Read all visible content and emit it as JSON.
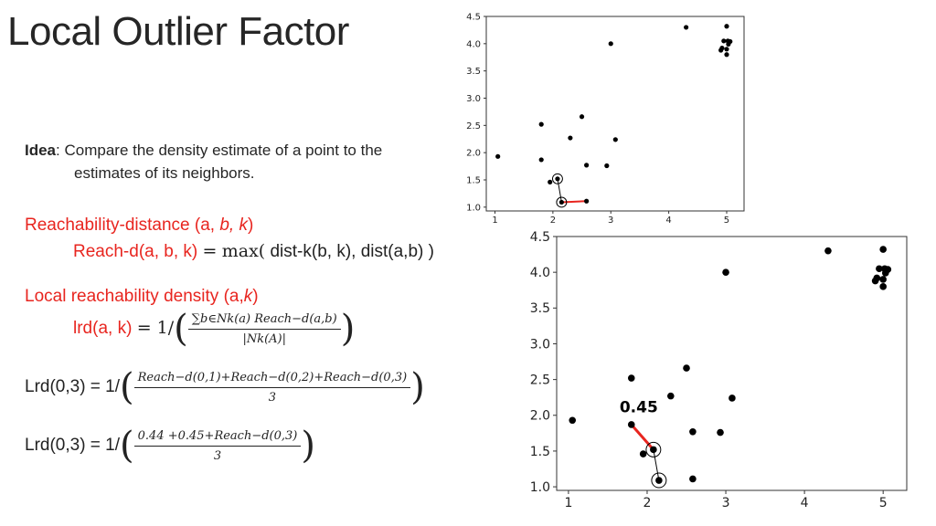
{
  "title": "Local Outlier Factor",
  "idea": {
    "label": "Idea",
    "line1": "Compare the density estimate of a point to the",
    "line2": "estimates of its neighbors."
  },
  "reach": {
    "heading_pre": "Reachability-distance (a,",
    "heading_b": "b,",
    "heading_k": "k",
    "heading_close": ")",
    "def_lhs": "Reach-d(a, b, k)",
    "def_eq": "=",
    "def_max": "max(",
    "def_rhs": "dist-k(b, k), dist(a,b) )"
  },
  "lrd": {
    "heading_pre": "Local reachability density (a,",
    "heading_k": "k",
    "heading_close": ")",
    "lhs": "lrd(a, k)",
    "eq": "= 1/",
    "num": "∑b∈Nk(a) Reach−d(a,b)",
    "den": "|Nk(A)|"
  },
  "ex1": {
    "lhs": "Lrd(0,3) = 1/",
    "num": "Reach−d(0,1)+Reach−d(0,2)+Reach−d(0,3)",
    "den": "3"
  },
  "ex2": {
    "lhs": "Lrd(0,3) = 1/",
    "num": "0.44 +0.45+Reach−d(0,3)",
    "den": "3"
  },
  "chart_data": [
    {
      "type": "scatter",
      "xlim": [
        0.85,
        5.3
      ],
      "ylim": [
        0.93,
        4.5
      ],
      "xticks": [
        "1",
        "2",
        "3",
        "4",
        "5"
      ],
      "yticks": [
        "1.0",
        "1.5",
        "2.0",
        "2.5",
        "3.0",
        "3.5",
        "4.0",
        "4.5"
      ],
      "points": [
        [
          1.05,
          1.93
        ],
        [
          1.8,
          2.52
        ],
        [
          1.8,
          1.87
        ],
        [
          1.95,
          1.46
        ],
        [
          2.08,
          1.52
        ],
        [
          2.15,
          1.09
        ],
        [
          2.3,
          2.27
        ],
        [
          2.5,
          2.66
        ],
        [
          2.58,
          1.77
        ],
        [
          2.58,
          1.11
        ],
        [
          2.93,
          1.76
        ],
        [
          3.08,
          2.24
        ],
        [
          3.0,
          4.0
        ],
        [
          4.3,
          4.3
        ],
        [
          4.92,
          3.92
        ],
        [
          4.95,
          4.05
        ],
        [
          5.0,
          3.8
        ],
        [
          5.0,
          3.9
        ],
        [
          5.0,
          4.32
        ],
        [
          5.02,
          4.05
        ],
        [
          5.06,
          4.04
        ],
        [
          4.9,
          3.88
        ],
        [
          5.03,
          3.99
        ]
      ],
      "highlight_points": [
        [
          2.08,
          1.52
        ],
        [
          2.15,
          1.09
        ]
      ],
      "black_edge": [
        [
          2.08,
          1.52
        ],
        [
          2.15,
          1.09
        ]
      ],
      "red_edge": [
        [
          2.15,
          1.09
        ],
        [
          2.58,
          1.11
        ]
      ],
      "grid": false
    },
    {
      "type": "scatter",
      "xlim": [
        0.85,
        5.3
      ],
      "ylim": [
        0.95,
        4.5
      ],
      "xticks": [
        "1",
        "2",
        "3",
        "4",
        "5"
      ],
      "yticks": [
        "1.0",
        "1.5",
        "2.0",
        "2.5",
        "3.0",
        "3.5",
        "4.0",
        "4.5"
      ],
      "points": [
        [
          1.05,
          1.93
        ],
        [
          1.8,
          2.52
        ],
        [
          1.8,
          1.87
        ],
        [
          1.95,
          1.46
        ],
        [
          2.08,
          1.52
        ],
        [
          2.15,
          1.09
        ],
        [
          2.3,
          2.27
        ],
        [
          2.5,
          2.66
        ],
        [
          2.58,
          1.77
        ],
        [
          2.58,
          1.11
        ],
        [
          2.93,
          1.76
        ],
        [
          3.08,
          2.24
        ],
        [
          3.0,
          4.0
        ],
        [
          4.3,
          4.3
        ],
        [
          4.92,
          3.92
        ],
        [
          4.95,
          4.05
        ],
        [
          5.0,
          3.8
        ],
        [
          5.0,
          3.9
        ],
        [
          5.0,
          4.32
        ],
        [
          5.02,
          4.05
        ],
        [
          5.06,
          4.04
        ],
        [
          4.9,
          3.88
        ],
        [
          5.03,
          3.99
        ]
      ],
      "highlight_points": [
        [
          2.08,
          1.52
        ],
        [
          2.15,
          1.09
        ]
      ],
      "black_edge": [
        [
          2.08,
          1.52
        ],
        [
          2.15,
          1.09
        ]
      ],
      "red_edge": [
        [
          1.8,
          1.87
        ],
        [
          2.08,
          1.52
        ]
      ],
      "annotation": {
        "text": "0.45",
        "at": [
          1.65,
          2.04
        ]
      },
      "grid": false
    }
  ]
}
